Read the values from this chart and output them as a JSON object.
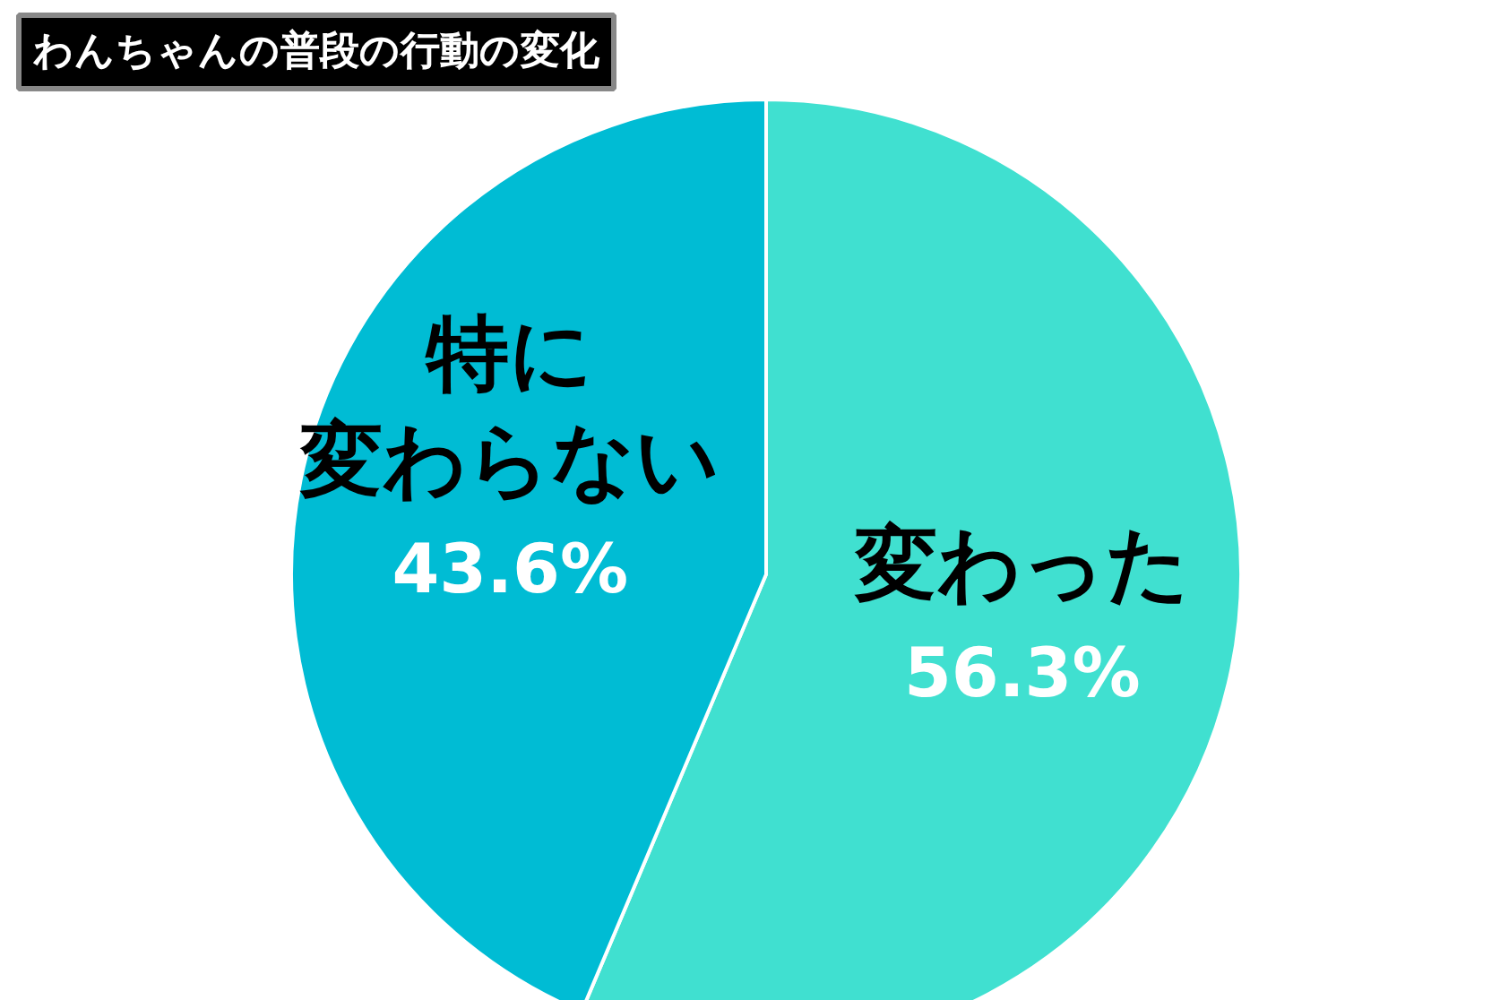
{
  "chart_data": {
    "type": "pie",
    "title": "わんちゃんの普段の行動の変化",
    "categories": [
      "変わった",
      "特に変わらない"
    ],
    "values": [
      56.3,
      43.6
    ],
    "colors": [
      "#40e0d0",
      "#00bcd4"
    ],
    "value_labels": [
      "56.3%",
      "43.6%"
    ]
  }
}
